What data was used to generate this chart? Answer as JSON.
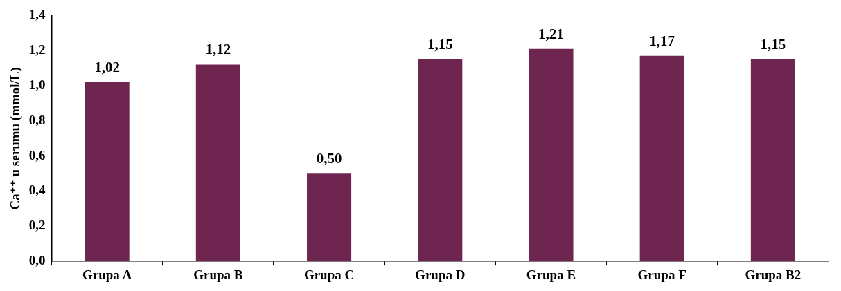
{
  "chart_data": {
    "type": "bar",
    "ylabel": "Ca⁺⁺ u serumu (mmol/L)",
    "categories": [
      "Grupa A",
      "Grupa B",
      "Grupa C",
      "Grupa D",
      "Grupa E",
      "Grupa F",
      "Grupa B2"
    ],
    "values": [
      1.02,
      1.12,
      0.5,
      1.15,
      1.21,
      1.17,
      1.15
    ],
    "value_labels": [
      "1,02",
      "1,12",
      "0,50",
      "1,15",
      "1,21",
      "1,17",
      "1,15"
    ],
    "color": "#6e2550",
    "ylim": [
      0,
      1.4
    ],
    "yticks": [
      {
        "value": 0,
        "label": "0,0"
      },
      {
        "value": 0.2,
        "label": "0,2"
      },
      {
        "value": 0.4,
        "label": "0,4"
      },
      {
        "value": 0.6,
        "label": "0,6"
      },
      {
        "value": 0.8,
        "label": "0,8"
      },
      {
        "value": 1.0,
        "label": "1,0"
      },
      {
        "value": 1.2,
        "label": "1,2"
      },
      {
        "value": 1.4,
        "label": "1,4"
      }
    ],
    "grid": false,
    "legend": false
  }
}
